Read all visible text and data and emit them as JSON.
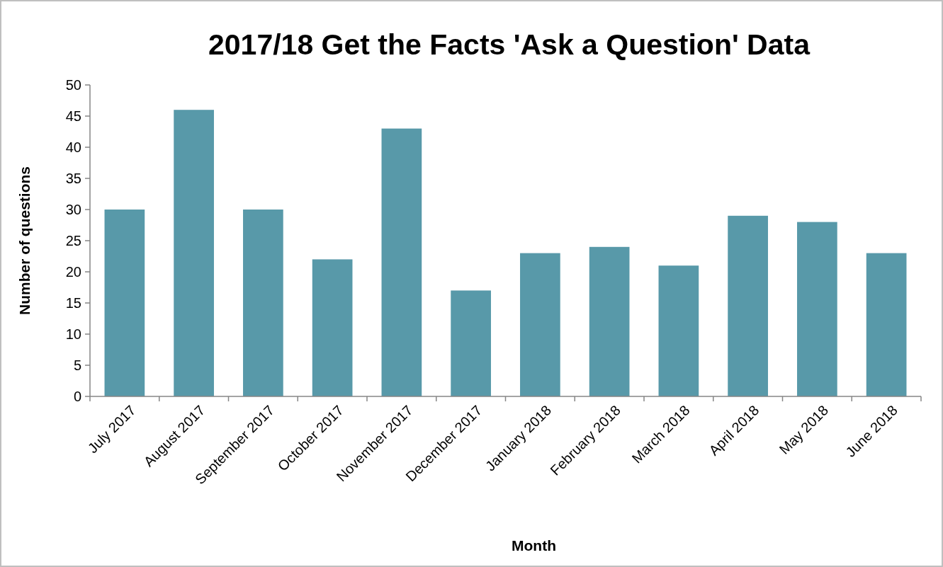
{
  "chart_data": {
    "type": "bar",
    "title": "2017/18 Get the Facts 'Ask a Question' Data",
    "xlabel": "Month",
    "ylabel": "Number of questions",
    "categories": [
      "July 2017",
      "August 2017",
      "September 2017",
      "October 2017",
      "November 2017",
      "December 2017",
      "January 2018",
      "February 2018",
      "March 2018",
      "April 2018",
      "May 2018",
      "June 2018"
    ],
    "values": [
      30,
      46,
      30,
      22,
      43,
      17,
      23,
      24,
      21,
      29,
      28,
      23
    ],
    "color": "#5899a9",
    "ylim": [
      0,
      50
    ],
    "yticks": [
      0,
      5,
      10,
      15,
      20,
      25,
      30,
      35,
      40,
      45,
      50
    ],
    "grid": false
  }
}
